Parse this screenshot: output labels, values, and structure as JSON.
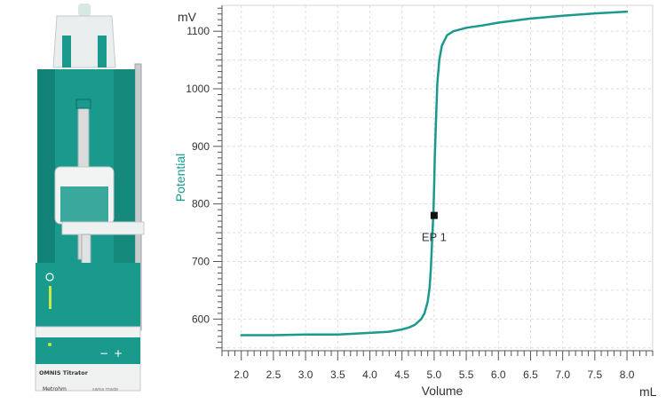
{
  "device": {
    "product_name": "OMNIS Titrator",
    "brand": "Metrohm",
    "tagline": "swiss made",
    "minus_symbol": "−",
    "plus_symbol": "+",
    "accent_color": "#1a9a8c"
  },
  "chart_data": {
    "type": "line",
    "title": "",
    "xlabel": "Volume",
    "xunit": "mL",
    "ylabel": "Potential",
    "yunit": "mV",
    "xlim": [
      1.7,
      8.4
    ],
    "ylim": [
      545,
      1145
    ],
    "x_ticks": [
      2.0,
      2.5,
      3.0,
      3.5,
      4.0,
      4.5,
      5.0,
      5.5,
      6.0,
      6.5,
      7.0,
      7.5,
      8.0
    ],
    "x_tick_labels": [
      "2.0",
      "2.5",
      "3.0",
      "3.5",
      "4.0",
      "4.5",
      "5.0",
      "5.5",
      "6.0",
      "6.5",
      "7.0",
      "7.5",
      "8.0"
    ],
    "y_ticks": [
      600,
      700,
      800,
      900,
      1000,
      1100
    ],
    "y_tick_labels": [
      "600",
      "700",
      "800",
      "900",
      "1000",
      "1100"
    ],
    "grid": true,
    "line_color": "#1a9a8c",
    "series": [
      {
        "x": [
          2.0,
          2.5,
          3.0,
          3.5,
          4.0,
          4.3,
          4.5,
          4.6,
          4.7,
          4.8,
          4.85,
          4.9,
          4.93,
          4.95,
          4.97,
          4.99,
          5.0,
          5.01,
          5.03,
          5.05,
          5.08,
          5.12,
          5.2,
          5.3,
          5.5,
          5.75,
          6.0,
          6.5,
          7.0,
          7.5,
          8.0
        ],
        "y": [
          572,
          572,
          573,
          573,
          576,
          578,
          582,
          585,
          590,
          600,
          610,
          630,
          655,
          690,
          740,
          790,
          830,
          880,
          950,
          1010,
          1050,
          1075,
          1093,
          1100,
          1106,
          1110,
          1115,
          1122,
          1127,
          1131,
          1134
        ]
      }
    ],
    "endpoint": {
      "label": "EP 1",
      "x": 5.0,
      "y": 780
    }
  }
}
